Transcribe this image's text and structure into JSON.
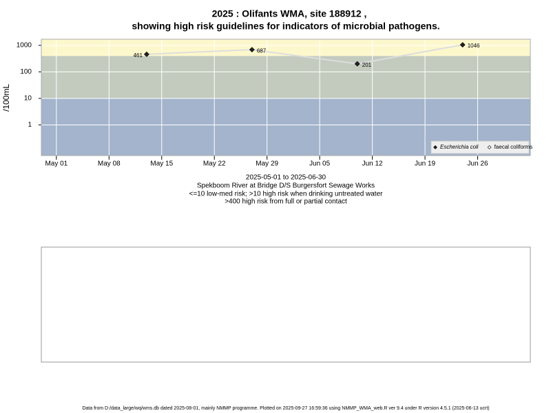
{
  "chart_data": {
    "type": "line",
    "title": "2025 : Olifants WMA, site 188912 ,",
    "subtitle": "showing high risk guidelines for indicators of microbial pathogens.",
    "y_label": "/100mL",
    "x": [
      "2025-05-13",
      "2025-05-27",
      "2025-06-10",
      "2025-06-24"
    ],
    "series": [
      {
        "name": "Escherichia coli",
        "color": "#222222",
        "line_color": "#dddddd",
        "values": [
          461,
          687,
          201,
          1046
        ]
      },
      {
        "name": "faecal coliforms",
        "color": "#ffffff",
        "values": [
          null,
          null,
          null,
          null
        ]
      }
    ],
    "log_scale": true,
    "ylim": [
      0.07,
      1700
    ],
    "yticks": [
      1,
      10,
      100,
      1000
    ],
    "xlim": [
      "2025-04-29",
      "2025-07-03"
    ],
    "xticks": [
      {
        "value": "2025-05-01",
        "label": "May 01"
      },
      {
        "value": "2025-05-08",
        "label": "May 08"
      },
      {
        "value": "2025-05-15",
        "label": "May 15"
      },
      {
        "value": "2025-05-22",
        "label": "May 22"
      },
      {
        "value": "2025-05-29",
        "label": "May 29"
      },
      {
        "value": "2025-06-05",
        "label": "Jun 05"
      },
      {
        "value": "2025-06-12",
        "label": "Jun 12"
      },
      {
        "value": "2025-06-19",
        "label": "Jun 19"
      },
      {
        "value": "2025-06-26",
        "label": "Jun 26"
      }
    ],
    "thresholds": [
      10,
      400
    ],
    "band_colors": [
      "#a3b4cc",
      "#c3cbbf",
      "#fdf8cc"
    ],
    "grid": true,
    "legend": "bottom-right",
    "captions": [
      "2025-05-01 to 2025-06-30",
      "Spekboom River at Bridge D/S Burgersfort Sewage Works",
      "<=10 low-med risk; >10 high risk when drinking untreated water",
      ">400 high risk from full or partial contact"
    ],
    "footer": "Data from D:/data_large/wq/wms.db dated 2025-08-01, mainly NMMP programme. Plotted on 2025-09-27 16:59:36 using NMMP_WMA_web.R ver 9.4 under R version 4.5.1 (2025-06-13 ucrt)"
  }
}
